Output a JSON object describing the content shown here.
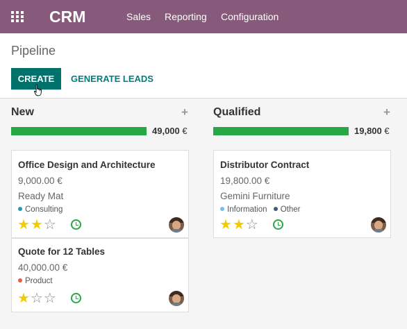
{
  "app": {
    "title": "CRM",
    "menu": [
      "Sales",
      "Reporting",
      "Configuration"
    ]
  },
  "control_panel": {
    "breadcrumb": "Pipeline",
    "create_label": "CREATE",
    "generate_label": "GENERATE LEADS"
  },
  "columns": [
    {
      "title": "New",
      "add_symbol": "+",
      "total": "49,000",
      "currency": "€",
      "progress": 1.0,
      "cards": [
        {
          "name": "Office Design and Architecture",
          "revenue": "9,000.00 €",
          "customer": "Ready Mat",
          "tags": [
            {
              "label": "Consulting",
              "color": "#2c96b4"
            }
          ],
          "stars": 2
        },
        {
          "name": "Quote for 12 Tables",
          "revenue": "40,000.00 €",
          "tags": [
            {
              "label": "Product",
              "color": "#e85c4a"
            }
          ],
          "stars": 1
        }
      ]
    },
    {
      "title": "Qualified",
      "add_symbol": "+",
      "total": "19,800",
      "currency": "€",
      "progress": 1.0,
      "cards": [
        {
          "name": "Distributor Contract",
          "revenue": "19,800.00 €",
          "customer": "Gemini Furniture",
          "tags": [
            {
              "label": "Information",
              "color": "#6cc1ed"
            },
            {
              "label": "Other",
              "color": "#475577"
            }
          ],
          "stars": 2
        }
      ]
    }
  ],
  "colors": {
    "topbar": "#875a7b",
    "primary_button": "#00716b",
    "progress_fill": "#28a745",
    "star_on": "#f3cc00"
  }
}
